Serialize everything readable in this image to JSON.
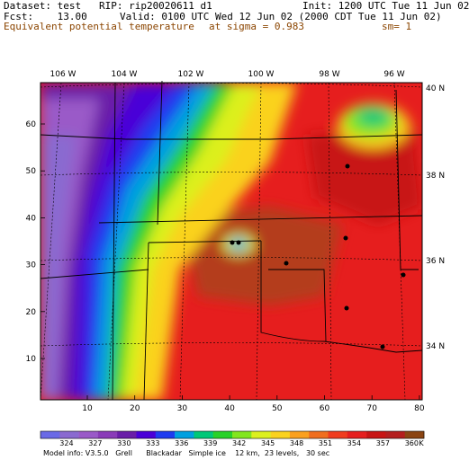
{
  "header": {
    "dataset_line": "Dataset: test   RIP: rip20020611 d1",
    "init_line": "Init: 1200 UTC Tue 11 Jun 02",
    "fcst_line": "Fcst:    13.00",
    "valid_line": "Valid: 0100 UTC Wed 12 Jun 02 (2000 CDT Tue 11 Jun 02)",
    "field_name": "Equivalent potential temperature",
    "level": "at sigma = 0.983",
    "smoothing": "sm= 1"
  },
  "map": {
    "longitude_labels": [
      "106 W",
      "104 W",
      "102 W",
      "100 W",
      "98 W",
      "96 W"
    ],
    "latitude_labels": [
      "40 N",
      "38 N",
      "36 N",
      "34 N"
    ],
    "x_grid_ticks": [
      "10",
      "20",
      "30",
      "40",
      "50",
      "60",
      "70",
      "80"
    ],
    "y_grid_ticks": [
      "10",
      "20",
      "30",
      "40",
      "50",
      "60"
    ]
  },
  "colorbar": {
    "labels": [
      "324",
      "327",
      "330",
      "333",
      "336",
      "339",
      "342",
      "345",
      "348",
      "351",
      "354",
      "357",
      "360"
    ],
    "unit": "K",
    "colors": [
      "#6a6ae6",
      "#8a6ad0",
      "#9a5ac8",
      "#8a3cb8",
      "#6a1ea8",
      "#4a00d8",
      "#1e3cf0",
      "#00a0e0",
      "#00c878",
      "#28d228",
      "#82e61e",
      "#dcf01e",
      "#fad21e",
      "#faa01e",
      "#f06e1e",
      "#f03c1e",
      "#e61e1e",
      "#c81414",
      "#b41e1e",
      "#8b4513"
    ]
  },
  "footer": {
    "model_info": "Model info: V3.5.0   Grell      Blackadar   Simple ice    12 km,  23 levels,   30 sec"
  }
}
